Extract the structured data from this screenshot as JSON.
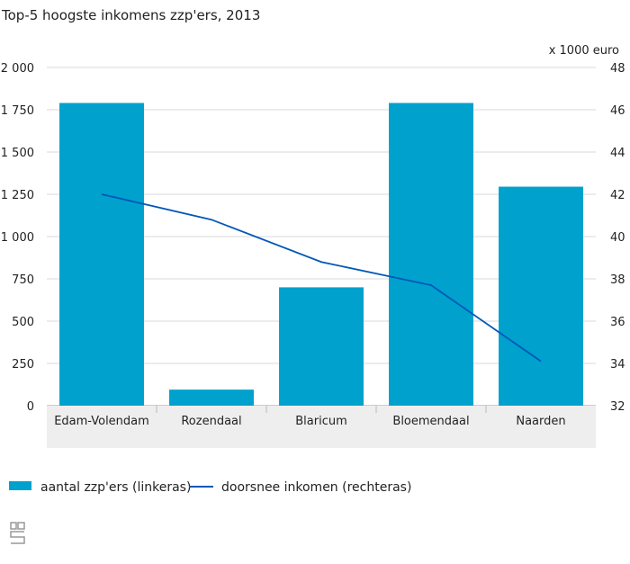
{
  "chart_data": {
    "type": "bar",
    "title": "Top-5 hoogste inkomens zzp'ers, 2013",
    "right_unit": "x 1000 euro",
    "categories": [
      "Edam-Volendam",
      "Rozendaal",
      "Blaricum",
      "Bloemendaal",
      "Naarden"
    ],
    "series": [
      {
        "name": "aantal zzp'ers (linkeras)",
        "type": "bar",
        "axis": "left",
        "color": "#00a1cd",
        "values": [
          1790,
          95,
          700,
          1790,
          1295
        ]
      },
      {
        "name": "doorsnee inkomen (rechteras)",
        "type": "line",
        "axis": "right",
        "color": "#0058b8",
        "values": [
          42.0,
          40.8,
          38.8,
          37.7,
          34.1
        ]
      }
    ],
    "left_axis": {
      "ylim": [
        0,
        2000
      ],
      "ticks": [
        0,
        250,
        500,
        750,
        1000,
        1250,
        1500,
        1750,
        2000
      ],
      "tick_labels": [
        "0",
        "250",
        "500",
        "750",
        "1 000",
        "1 250",
        "1 500",
        "1 750",
        "2 000"
      ]
    },
    "right_axis": {
      "ylim": [
        32,
        48
      ],
      "ticks": [
        32,
        34,
        36,
        38,
        40,
        42,
        44,
        46,
        48
      ],
      "tick_labels": [
        "32",
        "34",
        "36",
        "38",
        "40",
        "42",
        "44",
        "46",
        "48"
      ]
    },
    "grid": true,
    "legend_placement": "bottom-left"
  },
  "logo": "cbs"
}
